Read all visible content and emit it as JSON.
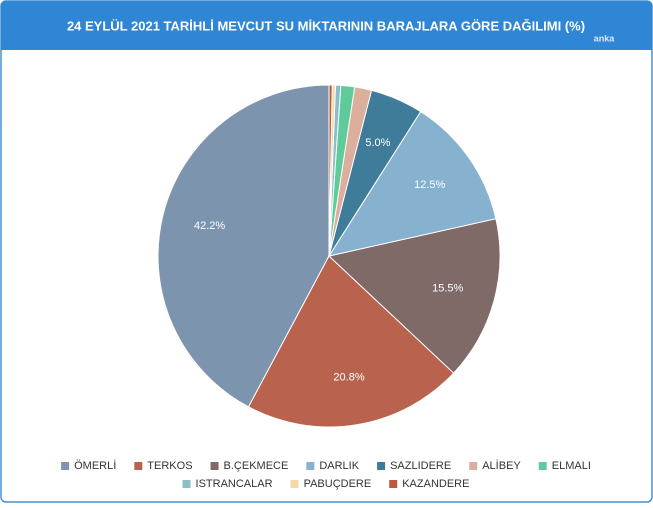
{
  "chart_data": {
    "type": "pie",
    "title": "24 EYLÜL 2021 TARİHLİ MEVCUT SU MİKTARININ BARAJLARA GÖRE DAĞILIMI (%)",
    "watermark": "anka",
    "categories": [
      "ÖMERLİ",
      "TERKOS",
      "B.ÇEKMECE",
      "DARLIK",
      "SAZLIDERE",
      "ALİBEY",
      "ELMALI",
      "ISTRANCALAR",
      "PABUÇDERE",
      "KAZANDERE"
    ],
    "values": [
      42.2,
      20.8,
      15.5,
      12.5,
      5.0,
      1.6,
      1.3,
      0.5,
      0.3,
      0.3
    ],
    "value_labels": [
      "42.2%",
      "20.8%",
      "15.5%",
      "12.5%",
      "5.0%",
      null,
      null,
      null,
      null,
      null
    ],
    "colors": [
      "#7d94ae",
      "#b9634f",
      "#7f6a68",
      "#86b2cf",
      "#3f7c99",
      "#dcae9c",
      "#5fcb9a",
      "#88bfc8",
      "#f4d9a8",
      "#c0583c"
    ],
    "direction": "counterclockwise"
  }
}
